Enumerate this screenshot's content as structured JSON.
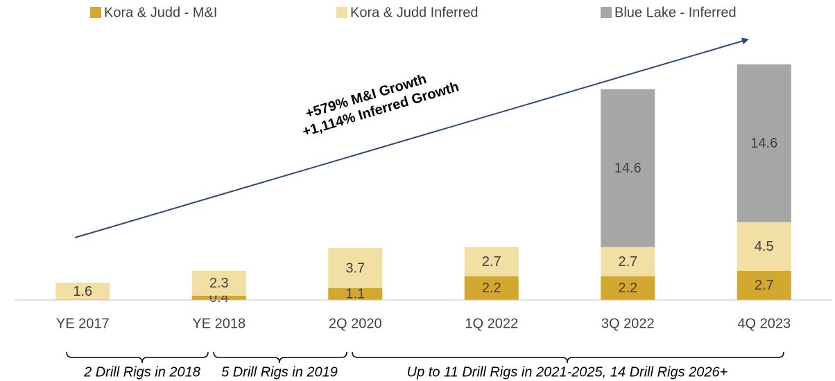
{
  "chart_data": {
    "type": "bar",
    "stacked": true,
    "categories": [
      "YE 2017",
      "YE 2018",
      "2Q 2020",
      "1Q 2022",
      "3Q 2022",
      "4Q 2023"
    ],
    "series": [
      {
        "name": "Kora & Judd - M&I",
        "color": "#d4a82e",
        "values": [
          null,
          0.4,
          1.1,
          2.2,
          2.2,
          2.7
        ]
      },
      {
        "name": "Kora & Judd Inferred",
        "color": "#f2dfa4",
        "values": [
          1.6,
          2.3,
          3.7,
          2.7,
          2.7,
          4.5
        ]
      },
      {
        "name": "Blue Lake - Inferred",
        "color": "#a6a6a6",
        "values": [
          null,
          null,
          null,
          null,
          14.6,
          14.6
        ]
      }
    ],
    "ylim": [
      0,
      22.5
    ],
    "annotations": [
      "+579% M&I Growth",
      "+1,114% Inferred Growth"
    ],
    "periods": [
      "2 Drill Rigs in 2018",
      "5 Drill Rigs in 2019",
      "Up to 11 Drill Rigs in 2021-2025, 14 Drill Rigs 2026+"
    ],
    "legend": "top"
  }
}
